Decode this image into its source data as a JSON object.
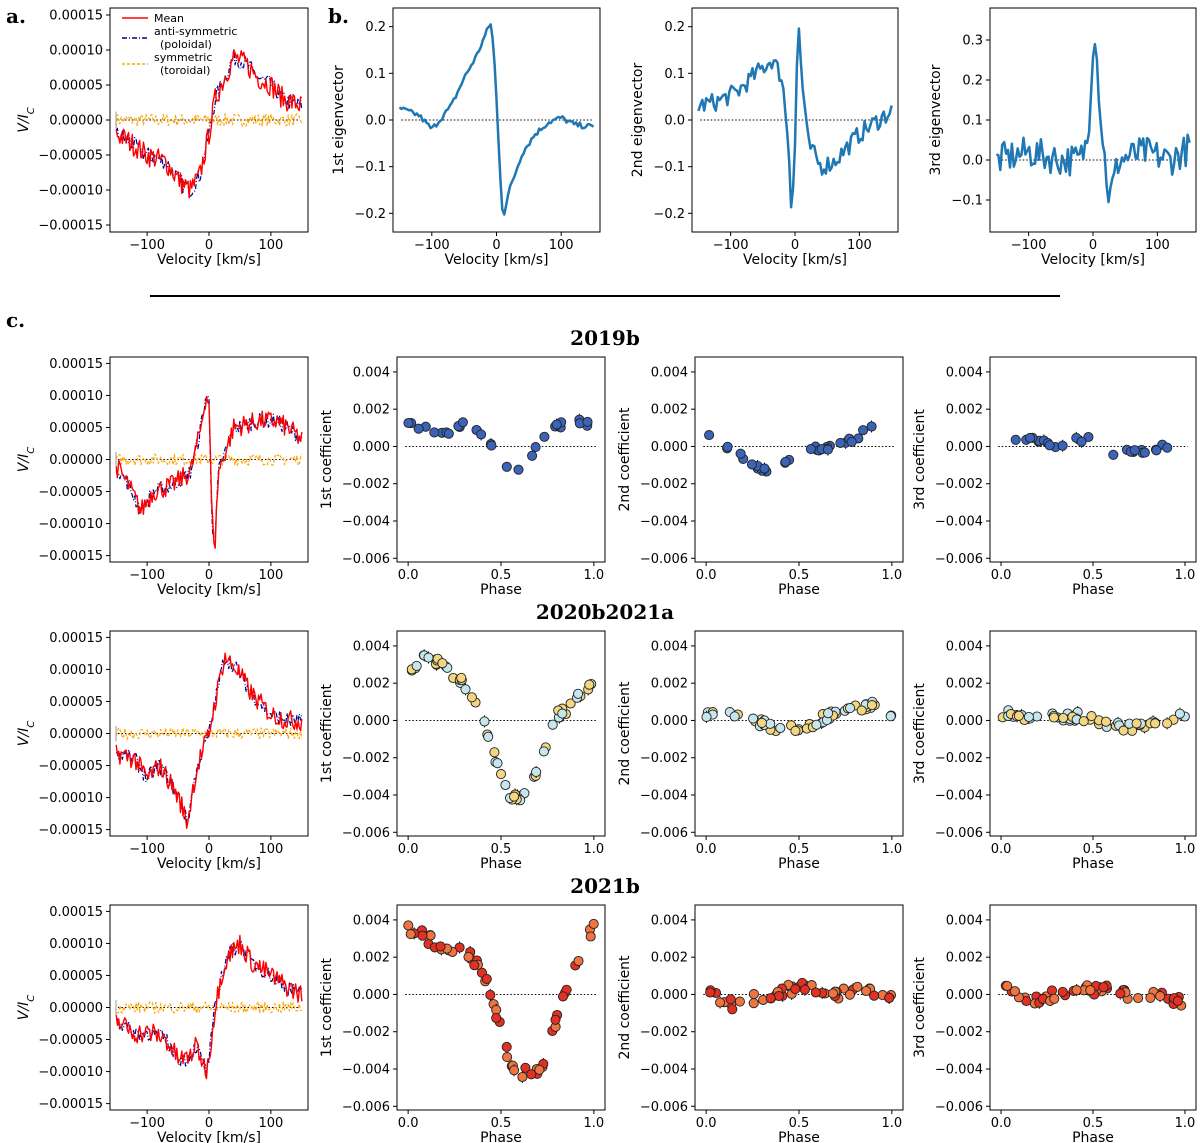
{
  "labels": {
    "a": "a.",
    "b": "b.",
    "c": "c."
  },
  "row_titles": [
    "2019b",
    "2020b2021a",
    "2021b"
  ],
  "colors": {
    "mean": "#ff0000",
    "poloidal": "#00008b",
    "toroidal": "#ffa500",
    "eigen": "#1f77b4",
    "s2019b": "#3b63b8",
    "s2020_a": "#c6e6ee",
    "s2020_b": "#f2d680",
    "s2021_a": "#e23022",
    "s2021_b": "#f0743f"
  },
  "chart_data": [
    {
      "id": "a",
      "type": "line",
      "xlabel": "Velocity [km/s]",
      "ylabel": "V/I_C",
      "xlim": [
        -160,
        160
      ],
      "ylim": [
        -0.00016,
        0.00016
      ],
      "xticks": [
        -100,
        0,
        100
      ],
      "yticks": [
        "0.00015",
        "0.00010",
        "0.00005",
        "0.00000",
        "−0.00005",
        "−0.00010",
        "−0.00015"
      ],
      "legend": [
        "Mean",
        "anti-symmetric (poloidal)",
        "symmetric (toroidal)"
      ],
      "legend_position": "top-left",
      "anchors": [
        [
          -150,
          -2e-05
        ],
        [
          -130,
          -3e-05
        ],
        [
          -100,
          -5e-05
        ],
        [
          -70,
          -6e-05
        ],
        [
          -45,
          -9e-05
        ],
        [
          -30,
          -0.0001
        ],
        [
          -15,
          -8e-05
        ],
        [
          0,
          -2e-05
        ],
        [
          10,
          3e-05
        ],
        [
          25,
          6e-05
        ],
        [
          40,
          9e-05
        ],
        [
          60,
          8e-05
        ],
        [
          80,
          6e-05
        ],
        [
          100,
          5e-05
        ],
        [
          120,
          3e-05
        ],
        [
          150,
          2e-05
        ]
      ]
    },
    {
      "id": "b1",
      "type": "line",
      "xlabel": "Velocity [km/s]",
      "ylabel": "1st eigenvector",
      "xlim": [
        -160,
        160
      ],
      "ylim": [
        -0.24,
        0.24
      ],
      "xticks": [
        -100,
        0,
        100
      ],
      "yticks": [
        "0.2",
        "0.1",
        "0.0",
        "−0.1",
        "−0.2"
      ],
      "anchors": [
        [
          -150,
          0.025
        ],
        [
          -120,
          0.01
        ],
        [
          -100,
          -0.02
        ],
        [
          -70,
          0.03
        ],
        [
          -50,
          0.09
        ],
        [
          -30,
          0.14
        ],
        [
          -15,
          0.19
        ],
        [
          -8,
          0.21
        ],
        [
          -2,
          0.1
        ],
        [
          5,
          -0.1
        ],
        [
          10,
          -0.21
        ],
        [
          20,
          -0.15
        ],
        [
          40,
          -0.07
        ],
        [
          60,
          -0.03
        ],
        [
          80,
          -0.005
        ],
        [
          100,
          0.005
        ],
        [
          120,
          -0.01
        ],
        [
          150,
          -0.015
        ]
      ]
    },
    {
      "id": "b2",
      "type": "line",
      "xlabel": "Velocity [km/s]",
      "ylabel": "2nd eigenvector",
      "xlim": [
        -160,
        160
      ],
      "ylim": [
        -0.24,
        0.24
      ],
      "xticks": [
        -100,
        0,
        100
      ],
      "yticks": [
        "0.2",
        "0.1",
        "0.0",
        "−0.1",
        "−0.2"
      ],
      "anchors": [
        [
          -150,
          0.03
        ],
        [
          -120,
          0.04
        ],
        [
          -90,
          0.06
        ],
        [
          -60,
          0.1
        ],
        [
          -35,
          0.13
        ],
        [
          -20,
          0.09
        ],
        [
          -10,
          -0.05
        ],
        [
          -5,
          -0.2
        ],
        [
          0,
          -0.05
        ],
        [
          5,
          0.22
        ],
        [
          10,
          0.1
        ],
        [
          20,
          -0.05
        ],
        [
          40,
          -0.1
        ],
        [
          60,
          -0.09
        ],
        [
          80,
          -0.06
        ],
        [
          100,
          -0.03
        ],
        [
          120,
          -0.01
        ],
        [
          150,
          0.02
        ]
      ]
    },
    {
      "id": "b3",
      "type": "line",
      "xlabel": "Velocity [km/s]",
      "ylabel": "3rd eigenvector",
      "xlim": [
        -160,
        160
      ],
      "ylim": [
        -0.18,
        0.38
      ],
      "xticks": [
        -100,
        0,
        100
      ],
      "yticks": [
        "0.3",
        "0.2",
        "0.1",
        "0.0",
        "−0.1"
      ],
      "anchors": [
        [
          -150,
          0.0
        ],
        [
          -100,
          0.02
        ],
        [
          -50,
          0.0
        ],
        [
          -20,
          0.0
        ],
        [
          -8,
          0.05
        ],
        [
          -3,
          0.2
        ],
        [
          2,
          0.35
        ],
        [
          8,
          0.2
        ],
        [
          15,
          0.05
        ],
        [
          25,
          -0.1
        ],
        [
          40,
          0.0
        ],
        [
          80,
          0.02
        ],
        [
          120,
          0.0
        ],
        [
          150,
          0.03
        ]
      ]
    },
    {
      "id": "c_2019b_v",
      "type": "line",
      "xlabel": "Velocity [km/s]",
      "ylabel": "V/I_C",
      "xlim": [
        -160,
        160
      ],
      "ylim": [
        -0.00016,
        0.00016
      ],
      "xticks": [
        -100,
        0,
        100
      ],
      "yticks": [
        "0.00015",
        "0.00010",
        "0.00005",
        "0.00000",
        "−0.00005",
        "−0.00010",
        "−0.00015"
      ],
      "anchors": [
        [
          -150,
          -1e-05
        ],
        [
          -130,
          -4e-05
        ],
        [
          -110,
          -8e-05
        ],
        [
          -90,
          -5e-05
        ],
        [
          -60,
          -4e-05
        ],
        [
          -30,
          -2e-05
        ],
        [
          -15,
          4e-05
        ],
        [
          -5,
          0.0001
        ],
        [
          0,
          9e-05
        ],
        [
          5,
          -0.0001
        ],
        [
          10,
          -0.00013
        ],
        [
          15,
          -2e-05
        ],
        [
          40,
          5e-05
        ],
        [
          80,
          6e-05
        ],
        [
          110,
          6e-05
        ],
        [
          140,
          4e-05
        ],
        [
          150,
          3e-05
        ]
      ]
    },
    {
      "id": "c_2019b_1",
      "type": "scatter",
      "xlabel": "Phase",
      "ylabel": "1st coefficient",
      "xlim": [
        -0.06,
        1.06
      ],
      "ylim": [
        -0.0062,
        0.0048
      ],
      "xticks": [
        "0.0",
        "0.5",
        "1.0"
      ],
      "yticks": [
        "0.004",
        "0.002",
        "0.000",
        "−0.002",
        "−0.004",
        "−0.006"
      ],
      "anchors": [
        [
          0,
          0.0013
        ],
        [
          0.08,
          0.001
        ],
        [
          0.18,
          0.0006
        ],
        [
          0.3,
          0.0012
        ],
        [
          0.4,
          0.0007
        ],
        [
          0.45,
          0.0
        ],
        [
          0.5,
          -0.0008
        ],
        [
          0.55,
          -0.0011
        ],
        [
          0.6,
          -0.0011
        ],
        [
          0.7,
          0.0
        ],
        [
          0.8,
          0.0011
        ],
        [
          0.92,
          0.0014
        ],
        [
          1.0,
          0.0011
        ]
      ]
    },
    {
      "id": "c_2019b_2",
      "type": "scatter",
      "xlabel": "Phase",
      "ylabel": "2nd coefficient",
      "xlim": [
        -0.06,
        1.06
      ],
      "ylim": [
        -0.0062,
        0.0048
      ],
      "xticks": [
        "0.0",
        "0.5",
        "1.0"
      ],
      "yticks": [
        "0.004",
        "0.002",
        "0.000",
        "−0.002",
        "−0.004",
        "−0.006"
      ],
      "anchors": [
        [
          0,
          0.0009
        ],
        [
          0.05,
          0.0004
        ],
        [
          0.12,
          -0.0002
        ],
        [
          0.2,
          -0.0006
        ],
        [
          0.3,
          -0.0013
        ],
        [
          0.4,
          -0.0009
        ],
        [
          0.5,
          -0.0003
        ],
        [
          0.6,
          -0.0001
        ],
        [
          0.7,
          0.0
        ],
        [
          0.8,
          0.0004
        ],
        [
          0.9,
          0.0012
        ],
        [
          1.0,
          0.0015
        ]
      ]
    },
    {
      "id": "c_2019b_3",
      "type": "scatter",
      "xlabel": "Phase",
      "ylabel": "3rd coefficient",
      "xlim": [
        -0.06,
        1.06
      ],
      "ylim": [
        -0.0062,
        0.0048
      ],
      "xticks": [
        "0.0",
        "0.5",
        "1.0"
      ],
      "yticks": [
        "0.004",
        "0.002",
        "0.000",
        "−0.002",
        "−0.004",
        "−0.006"
      ],
      "anchors": [
        [
          0,
          0.0005
        ],
        [
          0.1,
          0.0004
        ],
        [
          0.2,
          0.0003
        ],
        [
          0.3,
          0.0
        ],
        [
          0.4,
          0.0004
        ],
        [
          0.5,
          0.0004
        ],
        [
          0.6,
          -0.0004
        ],
        [
          0.7,
          -0.0002
        ],
        [
          0.8,
          -0.0002
        ],
        [
          0.9,
          0.0
        ],
        [
          1.0,
          -0.0003
        ]
      ]
    },
    {
      "id": "c_2020_v",
      "type": "line",
      "xlabel": "Velocity [km/s]",
      "ylabel": "V/I_C",
      "xlim": [
        -160,
        160
      ],
      "ylim": [
        -0.00016,
        0.00016
      ],
      "xticks": [
        -100,
        0,
        100
      ],
      "yticks": [
        "0.00015",
        "0.00010",
        "0.00005",
        "0.00000",
        "−0.00005",
        "−0.00010",
        "−0.00015"
      ],
      "anchors": [
        [
          -150,
          -3e-05
        ],
        [
          -120,
          -4e-05
        ],
        [
          -100,
          -7e-05
        ],
        [
          -80,
          -5e-05
        ],
        [
          -60,
          -8e-05
        ],
        [
          -45,
          -0.00011
        ],
        [
          -35,
          -0.00014
        ],
        [
          -25,
          -8e-05
        ],
        [
          -15,
          -4e-05
        ],
        [
          0,
          0.0
        ],
        [
          10,
          5e-05
        ],
        [
          25,
          0.00012
        ],
        [
          45,
          0.0001
        ],
        [
          70,
          6e-05
        ],
        [
          100,
          3e-05
        ],
        [
          130,
          2e-05
        ],
        [
          150,
          2e-05
        ]
      ]
    },
    {
      "id": "c_2020_1",
      "type": "scatter",
      "xlabel": "Phase",
      "ylabel": "1st coefficient",
      "xlim": [
        -0.06,
        1.06
      ],
      "ylim": [
        -0.0062,
        0.0048
      ],
      "xticks": [
        "0.0",
        "0.5",
        "1.0"
      ],
      "yticks": [
        "0.004",
        "0.002",
        "0.000",
        "−0.002",
        "−0.004",
        "−0.006"
      ],
      "anchors": [
        [
          0,
          0.0025
        ],
        [
          0.1,
          0.0036
        ],
        [
          0.2,
          0.0028
        ],
        [
          0.3,
          0.002
        ],
        [
          0.4,
          0.0005
        ],
        [
          0.45,
          -0.0015
        ],
        [
          0.5,
          -0.003
        ],
        [
          0.55,
          -0.0042
        ],
        [
          0.6,
          -0.0042
        ],
        [
          0.65,
          -0.0036
        ],
        [
          0.7,
          -0.0025
        ],
        [
          0.75,
          -0.001
        ],
        [
          0.8,
          0.0003
        ],
        [
          0.85,
          0.0005
        ],
        [
          0.9,
          0.001
        ],
        [
          1.0,
          0.0023
        ]
      ]
    },
    {
      "id": "c_2020_2",
      "type": "scatter",
      "xlabel": "Phase",
      "ylabel": "2nd coefficient",
      "xlim": [
        -0.06,
        1.06
      ],
      "ylim": [
        -0.0062,
        0.0048
      ],
      "xticks": [
        "0.0",
        "0.5",
        "1.0"
      ],
      "yticks": [
        "0.004",
        "0.002",
        "0.000",
        "−0.002",
        "−0.004",
        "−0.006"
      ],
      "anchors": [
        [
          0,
          0.0003
        ],
        [
          0.15,
          0.0002
        ],
        [
          0.3,
          -0.0002
        ],
        [
          0.4,
          -0.0005
        ],
        [
          0.5,
          -0.0005
        ],
        [
          0.6,
          0.0
        ],
        [
          0.7,
          0.0004
        ],
        [
          0.8,
          0.0007
        ],
        [
          0.9,
          0.0008
        ],
        [
          1.0,
          0.0004
        ]
      ]
    },
    {
      "id": "c_2020_3",
      "type": "scatter",
      "xlabel": "Phase",
      "ylabel": "3rd coefficient",
      "xlim": [
        -0.06,
        1.06
      ],
      "ylim": [
        -0.0062,
        0.0048
      ],
      "xticks": [
        "0.0",
        "0.5",
        "1.0"
      ],
      "yticks": [
        "0.004",
        "0.002",
        "0.000",
        "−0.002",
        "−0.004",
        "−0.006"
      ],
      "anchors": [
        [
          0,
          0.0004
        ],
        [
          0.15,
          0.0002
        ],
        [
          0.3,
          0.0002
        ],
        [
          0.45,
          0.0002
        ],
        [
          0.55,
          -0.0001
        ],
        [
          0.65,
          -0.0004
        ],
        [
          0.75,
          -0.0003
        ],
        [
          0.85,
          -0.0001
        ],
        [
          1.0,
          0.0003
        ]
      ]
    },
    {
      "id": "c_2021b_v",
      "type": "line",
      "xlabel": "Velocity [km/s]",
      "ylabel": "V/I_C",
      "xlim": [
        -160,
        160
      ],
      "ylim": [
        -0.00016,
        0.00016
      ],
      "xticks": [
        -100,
        0,
        100
      ],
      "yticks": [
        "0.00015",
        "0.00010",
        "0.00005",
        "0.00000",
        "−0.00005",
        "−0.00010",
        "−0.00015"
      ],
      "anchors": [
        [
          -150,
          -2e-05
        ],
        [
          -120,
          -4e-05
        ],
        [
          -90,
          -4e-05
        ],
        [
          -70,
          -5e-05
        ],
        [
          -50,
          -8e-05
        ],
        [
          -35,
          -8e-05
        ],
        [
          -20,
          -6e-05
        ],
        [
          -5,
          -0.0001
        ],
        [
          0,
          -8e-05
        ],
        [
          10,
          0.0
        ],
        [
          20,
          5e-05
        ],
        [
          30,
          8e-05
        ],
        [
          50,
          0.0001
        ],
        [
          70,
          7e-05
        ],
        [
          100,
          5e-05
        ],
        [
          130,
          3e-05
        ],
        [
          150,
          2e-05
        ]
      ]
    },
    {
      "id": "c_2021b_1",
      "type": "scatter",
      "xlabel": "Phase",
      "ylabel": "1st coefficient",
      "xlim": [
        -0.06,
        1.06
      ],
      "ylim": [
        -0.0062,
        0.0048
      ],
      "xticks": [
        "0.0",
        "0.5",
        "1.0"
      ],
      "yticks": [
        "0.004",
        "0.002",
        "0.000",
        "−0.002",
        "−0.004",
        "−0.006"
      ],
      "anchors": [
        [
          0.03,
          0.0035
        ],
        [
          0.1,
          0.003
        ],
        [
          0.2,
          0.0025
        ],
        [
          0.3,
          0.0022
        ],
        [
          0.38,
          0.0017
        ],
        [
          0.43,
          0.0005
        ],
        [
          0.48,
          -0.0012
        ],
        [
          0.53,
          -0.003
        ],
        [
          0.58,
          -0.0045
        ],
        [
          0.63,
          -0.0042
        ],
        [
          0.68,
          -0.0045
        ],
        [
          0.73,
          -0.0035
        ],
        [
          0.78,
          -0.002
        ],
        [
          0.83,
          -0.0005
        ],
        [
          0.88,
          0.001
        ],
        [
          0.95,
          0.0025
        ],
        [
          1.0,
          0.0038
        ]
      ]
    },
    {
      "id": "c_2021b_2",
      "type": "scatter",
      "xlabel": "Phase",
      "ylabel": "2nd coefficient",
      "xlim": [
        -0.06,
        1.06
      ],
      "ylim": [
        -0.0062,
        0.0048
      ],
      "xticks": [
        "0.0",
        "0.5",
        "1.0"
      ],
      "yticks": [
        "0.004",
        "0.002",
        "0.000",
        "−0.002",
        "−0.004",
        "−0.006"
      ],
      "anchors": [
        [
          0.03,
          0.0001
        ],
        [
          0.1,
          -0.0006
        ],
        [
          0.2,
          -0.0004
        ],
        [
          0.3,
          -0.0001
        ],
        [
          0.4,
          0.0002
        ],
        [
          0.5,
          0.0004
        ],
        [
          0.6,
          0.0002
        ],
        [
          0.7,
          -0.0001
        ],
        [
          0.8,
          0.0002
        ],
        [
          0.9,
          0.0001
        ],
        [
          1.0,
          -0.0003
        ]
      ]
    },
    {
      "id": "c_2021b_3",
      "type": "scatter",
      "xlabel": "Phase",
      "ylabel": "3rd coefficient",
      "xlim": [
        -0.06,
        1.06
      ],
      "ylim": [
        -0.0062,
        0.0048
      ],
      "xticks": [
        "0.0",
        "0.5",
        "1.0"
      ],
      "yticks": [
        "0.004",
        "0.002",
        "0.000",
        "−0.002",
        "−0.004",
        "−0.006"
      ],
      "anchors": [
        [
          0.03,
          0.0004
        ],
        [
          0.1,
          0.0
        ],
        [
          0.2,
          -0.0003
        ],
        [
          0.3,
          0.0
        ],
        [
          0.4,
          0.0003
        ],
        [
          0.5,
          0.0003
        ],
        [
          0.6,
          0.0002
        ],
        [
          0.7,
          0.0
        ],
        [
          0.8,
          0.0
        ],
        [
          0.9,
          -0.0002
        ],
        [
          1.0,
          -0.0004
        ]
      ]
    }
  ]
}
